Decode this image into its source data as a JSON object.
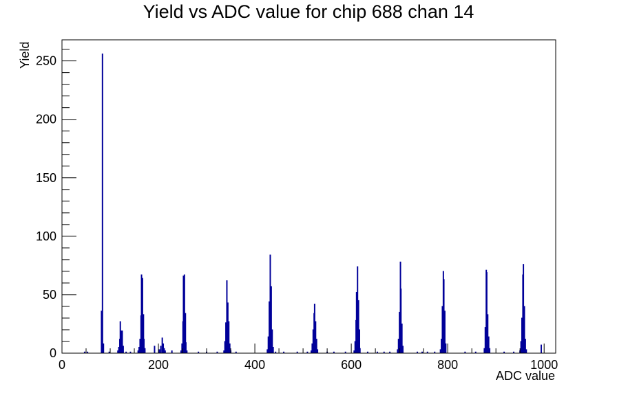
{
  "chart_data": {
    "type": "bar",
    "title": "Yield vs ADC value for chip 688 chan 14",
    "xlabel": "ADC value",
    "ylabel": "Yield",
    "xlim": [
      0,
      1024
    ],
    "ylim": [
      0,
      268
    ],
    "x_ticks": [
      0,
      200,
      400,
      600,
      800,
      1000
    ],
    "y_ticks": [
      0,
      50,
      100,
      150,
      200,
      250
    ],
    "grid": false,
    "legend": "none",
    "series_color": "#000099",
    "bins": [
      {
        "x": 47,
        "y": 1
      },
      {
        "x": 53,
        "y": 1
      },
      {
        "x": 82,
        "y": 36
      },
      {
        "x": 84,
        "y": 256
      },
      {
        "x": 86,
        "y": 8
      },
      {
        "x": 98,
        "y": 1
      },
      {
        "x": 116,
        "y": 2
      },
      {
        "x": 118,
        "y": 5
      },
      {
        "x": 120,
        "y": 12
      },
      {
        "x": 121,
        "y": 27
      },
      {
        "x": 123,
        "y": 19
      },
      {
        "x": 125,
        "y": 19
      },
      {
        "x": 127,
        "y": 6
      },
      {
        "x": 133,
        "y": 1
      },
      {
        "x": 142,
        "y": 1
      },
      {
        "x": 158,
        "y": 2
      },
      {
        "x": 160,
        "y": 5
      },
      {
        "x": 162,
        "y": 12
      },
      {
        "x": 164,
        "y": 32
      },
      {
        "x": 165,
        "y": 67
      },
      {
        "x": 167,
        "y": 64
      },
      {
        "x": 169,
        "y": 33
      },
      {
        "x": 170,
        "y": 12
      },
      {
        "x": 172,
        "y": 4
      },
      {
        "x": 192,
        "y": 6
      },
      {
        "x": 202,
        "y": 3
      },
      {
        "x": 205,
        "y": 6
      },
      {
        "x": 208,
        "y": 13
      },
      {
        "x": 210,
        "y": 8
      },
      {
        "x": 212,
        "y": 4
      },
      {
        "x": 214,
        "y": 2
      },
      {
        "x": 228,
        "y": 2
      },
      {
        "x": 247,
        "y": 2
      },
      {
        "x": 249,
        "y": 8
      },
      {
        "x": 251,
        "y": 27
      },
      {
        "x": 252,
        "y": 66
      },
      {
        "x": 254,
        "y": 67
      },
      {
        "x": 256,
        "y": 34
      },
      {
        "x": 257,
        "y": 9
      },
      {
        "x": 259,
        "y": 2
      },
      {
        "x": 283,
        "y": 1
      },
      {
        "x": 300,
        "y": 1
      },
      {
        "x": 322,
        "y": 1
      },
      {
        "x": 336,
        "y": 2
      },
      {
        "x": 338,
        "y": 10
      },
      {
        "x": 340,
        "y": 26
      },
      {
        "x": 342,
        "y": 62
      },
      {
        "x": 344,
        "y": 43
      },
      {
        "x": 346,
        "y": 27
      },
      {
        "x": 348,
        "y": 8
      },
      {
        "x": 350,
        "y": 2
      },
      {
        "x": 361,
        "y": 1
      },
      {
        "x": 426,
        "y": 3
      },
      {
        "x": 428,
        "y": 14
      },
      {
        "x": 430,
        "y": 44
      },
      {
        "x": 432,
        "y": 84
      },
      {
        "x": 434,
        "y": 57
      },
      {
        "x": 436,
        "y": 20
      },
      {
        "x": 438,
        "y": 5
      },
      {
        "x": 443,
        "y": 1
      },
      {
        "x": 460,
        "y": 1
      },
      {
        "x": 488,
        "y": 1
      },
      {
        "x": 509,
        "y": 1
      },
      {
        "x": 517,
        "y": 2
      },
      {
        "x": 519,
        "y": 8
      },
      {
        "x": 521,
        "y": 20
      },
      {
        "x": 523,
        "y": 34
      },
      {
        "x": 524,
        "y": 42
      },
      {
        "x": 526,
        "y": 27
      },
      {
        "x": 528,
        "y": 12
      },
      {
        "x": 530,
        "y": 3
      },
      {
        "x": 550,
        "y": 1
      },
      {
        "x": 564,
        "y": 1
      },
      {
        "x": 588,
        "y": 1
      },
      {
        "x": 606,
        "y": 2
      },
      {
        "x": 608,
        "y": 10
      },
      {
        "x": 610,
        "y": 28
      },
      {
        "x": 611,
        "y": 52
      },
      {
        "x": 613,
        "y": 74
      },
      {
        "x": 615,
        "y": 45
      },
      {
        "x": 617,
        "y": 20
      },
      {
        "x": 618,
        "y": 4
      },
      {
        "x": 634,
        "y": 1
      },
      {
        "x": 654,
        "y": 1
      },
      {
        "x": 668,
        "y": 1
      },
      {
        "x": 680,
        "y": 1
      },
      {
        "x": 696,
        "y": 3
      },
      {
        "x": 698,
        "y": 12
      },
      {
        "x": 700,
        "y": 35
      },
      {
        "x": 702,
        "y": 78
      },
      {
        "x": 703,
        "y": 55
      },
      {
        "x": 705,
        "y": 25
      },
      {
        "x": 707,
        "y": 6
      },
      {
        "x": 737,
        "y": 1
      },
      {
        "x": 747,
        "y": 1
      },
      {
        "x": 758,
        "y": 1
      },
      {
        "x": 773,
        "y": 1
      },
      {
        "x": 785,
        "y": 3
      },
      {
        "x": 787,
        "y": 12
      },
      {
        "x": 789,
        "y": 40
      },
      {
        "x": 791,
        "y": 70
      },
      {
        "x": 792,
        "y": 63
      },
      {
        "x": 794,
        "y": 36
      },
      {
        "x": 796,
        "y": 8
      },
      {
        "x": 836,
        "y": 1
      },
      {
        "x": 858,
        "y": 1
      },
      {
        "x": 876,
        "y": 4
      },
      {
        "x": 878,
        "y": 22
      },
      {
        "x": 880,
        "y": 71
      },
      {
        "x": 881,
        "y": 69
      },
      {
        "x": 883,
        "y": 33
      },
      {
        "x": 885,
        "y": 14
      },
      {
        "x": 887,
        "y": 4
      },
      {
        "x": 917,
        "y": 1
      },
      {
        "x": 937,
        "y": 1
      },
      {
        "x": 950,
        "y": 2
      },
      {
        "x": 952,
        "y": 10
      },
      {
        "x": 954,
        "y": 30
      },
      {
        "x": 956,
        "y": 67
      },
      {
        "x": 957,
        "y": 76
      },
      {
        "x": 959,
        "y": 40
      },
      {
        "x": 961,
        "y": 12
      },
      {
        "x": 963,
        "y": 3
      },
      {
        "x": 994,
        "y": 7
      }
    ]
  }
}
